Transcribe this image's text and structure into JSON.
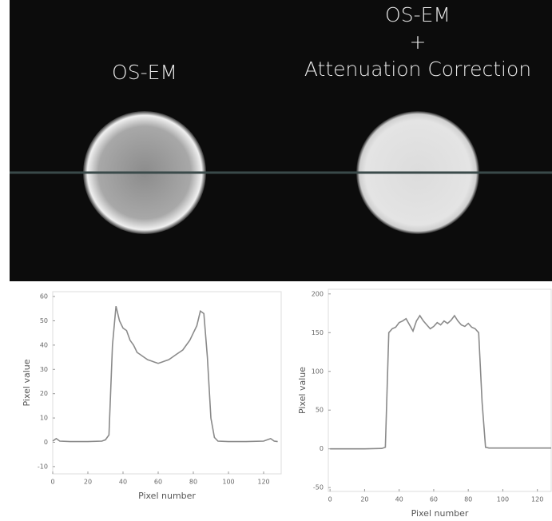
{
  "images": [
    {
      "label_lines": [
        "OS-EM"
      ]
    },
    {
      "label_lines": [
        "OS-EM",
        "+",
        "Attenuation Correction"
      ]
    }
  ],
  "chart_data": [
    {
      "type": "line",
      "xlabel": "Pixel number",
      "ylabel": "Pixel value",
      "xlim": [
        0,
        130
      ],
      "ylim": [
        -13,
        62
      ],
      "xticks": [
        0,
        20,
        40,
        60,
        80,
        100,
        120
      ],
      "yticks": [
        -10,
        0,
        10,
        20,
        30,
        40,
        50,
        60
      ],
      "series": [
        {
          "color": "#8a8a8a",
          "x": [
            0,
            2,
            4,
            10,
            20,
            28,
            30,
            32,
            34,
            36,
            38,
            40,
            42,
            44,
            46,
            48,
            50,
            52,
            54,
            56,
            58,
            60,
            62,
            64,
            66,
            68,
            70,
            72,
            74,
            76,
            78,
            80,
            82,
            84,
            86,
            88,
            90,
            92,
            94,
            100,
            110,
            120,
            124,
            126,
            128
          ],
          "values": [
            0.5,
            1.5,
            0.5,
            0.3,
            0.3,
            0.5,
            1,
            3,
            40,
            56,
            50,
            47,
            46,
            42,
            40,
            37,
            36,
            35,
            34,
            33.5,
            33,
            32.5,
            33,
            33.5,
            34,
            35,
            36,
            37,
            38,
            40,
            42,
            45,
            48,
            54,
            53,
            35,
            10,
            2,
            0.5,
            0.3,
            0.3,
            0.5,
            1.5,
            0.5,
            0.3
          ]
        }
      ]
    },
    {
      "type": "line",
      "xlabel": "Pixel number",
      "ylabel": "Pixel value",
      "xlim": [
        -1,
        128
      ],
      "ylim": [
        -55,
        206
      ],
      "xticks": [
        0,
        20,
        40,
        60,
        80,
        100,
        120
      ],
      "yticks": [
        -50,
        0,
        50,
        100,
        150,
        200
      ],
      "series": [
        {
          "color": "#8a8a8a",
          "x": [
            0,
            10,
            20,
            30,
            32,
            34,
            36,
            38,
            40,
            42,
            44,
            46,
            48,
            50,
            52,
            54,
            56,
            58,
            60,
            62,
            64,
            66,
            68,
            70,
            72,
            74,
            76,
            78,
            80,
            82,
            84,
            86,
            88,
            90,
            92,
            100,
            110,
            120,
            128
          ],
          "values": [
            0,
            0,
            0,
            0.5,
            2,
            150,
            155,
            157,
            163,
            165,
            168,
            160,
            152,
            165,
            172,
            165,
            160,
            155,
            158,
            163,
            160,
            165,
            162,
            166,
            172,
            165,
            160,
            158,
            162,
            157,
            155,
            150,
            60,
            2,
            1,
            1,
            1,
            1,
            1
          ]
        }
      ]
    }
  ]
}
